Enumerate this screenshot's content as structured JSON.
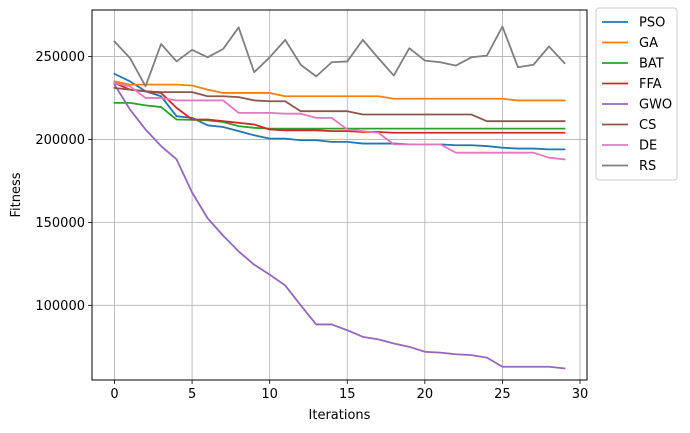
{
  "chart_data": {
    "type": "line",
    "title": "",
    "xlabel": "Iterations",
    "ylabel": "Fitness",
    "xlim": [
      -1.45,
      30.45
    ],
    "ylim": [
      55000,
      278000
    ],
    "grid": true,
    "legend_position": "outside-right-top",
    "x_ticks": [
      0,
      5,
      10,
      15,
      20,
      25,
      30
    ],
    "x_tick_labels": [
      "0",
      "5",
      "10",
      "15",
      "20",
      "25",
      "30"
    ],
    "y_ticks": [
      100000,
      150000,
      200000,
      250000
    ],
    "y_tick_labels": [
      "100000",
      "150000",
      "200000",
      "250000"
    ],
    "x": [
      0,
      1,
      2,
      3,
      4,
      5,
      6,
      7,
      8,
      9,
      10,
      11,
      12,
      13,
      14,
      15,
      16,
      17,
      18,
      19,
      20,
      21,
      22,
      23,
      24,
      25,
      26,
      27,
      28,
      29
    ],
    "series": [
      {
        "name": "PSO",
        "color": "#1f77b4",
        "values": [
          239500,
          235000,
          229000,
          226000,
          214000,
          213000,
          208500,
          207500,
          205000,
          202500,
          200500,
          200500,
          199500,
          199500,
          198500,
          198500,
          197500,
          197500,
          197500,
          197000,
          197000,
          197000,
          196500,
          196500,
          196000,
          195000,
          194500,
          194500,
          194000,
          194000
        ]
      },
      {
        "name": "GA",
        "color": "#ff7f0e",
        "values": [
          235000,
          233000,
          233000,
          233000,
          233000,
          232500,
          230000,
          228000,
          228000,
          228000,
          228000,
          226000,
          226000,
          226000,
          226000,
          226000,
          226000,
          226000,
          224500,
          224500,
          224500,
          224500,
          224500,
          224500,
          224500,
          224500,
          223500,
          223500,
          223500,
          223500
        ]
      },
      {
        "name": "BAT",
        "color": "#2ca02c",
        "values": [
          222000,
          222000,
          220500,
          219500,
          212000,
          211800,
          211500,
          210500,
          208000,
          207000,
          206500,
          206500,
          206500,
          206500,
          206500,
          206500,
          206500,
          206500,
          206500,
          206500,
          206500,
          206500,
          206500,
          206500,
          206500,
          206500,
          206500,
          206500,
          206500,
          206500
        ]
      },
      {
        "name": "FFA",
        "color": "#d62728",
        "values": [
          234000,
          230000,
          229000,
          228000,
          219000,
          212000,
          212000,
          211000,
          210000,
          209000,
          206000,
          205500,
          205500,
          205500,
          205000,
          205000,
          204500,
          204500,
          204000,
          204000,
          204000,
          204000,
          204000,
          204000,
          204000,
          204000,
          204000,
          204000,
          204000,
          204000
        ]
      },
      {
        "name": "GWO",
        "color": "#9467bd",
        "values": [
          233000,
          218000,
          206000,
          196000,
          188000,
          168000,
          152500,
          142000,
          132500,
          124500,
          118500,
          112000,
          100000,
          88500,
          88500,
          85000,
          81000,
          79500,
          77000,
          75000,
          72000,
          71500,
          70500,
          70000,
          68500,
          63000,
          63000,
          63000,
          63000,
          62000
        ]
      },
      {
        "name": "CS",
        "color": "#8c564b",
        "values": [
          231000,
          230000,
          229000,
          228500,
          228500,
          228500,
          226000,
          226000,
          225500,
          223500,
          223000,
          223000,
          217000,
          217000,
          217000,
          217000,
          215000,
          215000,
          215000,
          215000,
          215000,
          215000,
          215000,
          215000,
          211000,
          211000,
          211000,
          211000,
          211000,
          211000
        ]
      },
      {
        "name": "DE",
        "color": "#e377c2",
        "values": [
          234000,
          232000,
          225000,
          225000,
          223500,
          223500,
          223500,
          223500,
          216000,
          216000,
          216000,
          215500,
          215500,
          213000,
          213000,
          206000,
          205000,
          204000,
          197000,
          197000,
          197000,
          197000,
          192000,
          192000,
          192000,
          192000,
          192000,
          192000,
          189000,
          188000
        ]
      },
      {
        "name": "RS",
        "color": "#7f7f7f",
        "values": [
          259000,
          249000,
          232000,
          257500,
          247000,
          254000,
          249500,
          254500,
          267500,
          240500,
          249500,
          260000,
          245000,
          238000,
          246500,
          247000,
          260000,
          249000,
          238500,
          255000,
          247500,
          246500,
          244500,
          249500,
          250500,
          268000,
          243500,
          245000,
          256000,
          246000
        ]
      }
    ]
  }
}
